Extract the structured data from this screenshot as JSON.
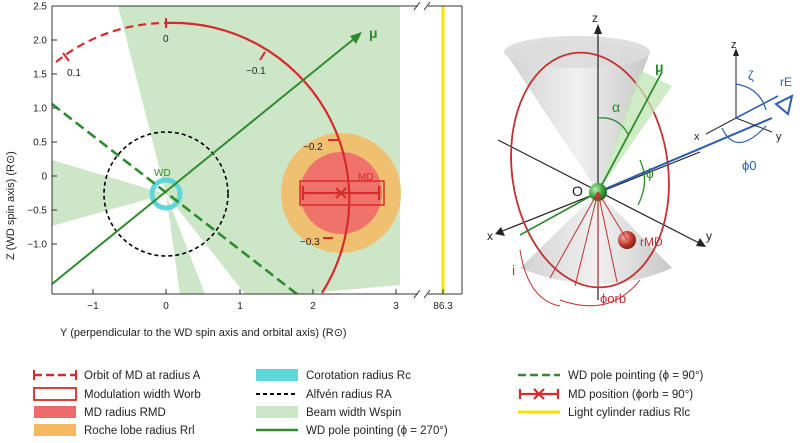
{
  "left_panel": {
    "x_axis_label": "Y (perpendicular to the WD spin axis and orbital axis) (R⊙)",
    "y_axis_label": "Z (WD spin axis) (R⊙)",
    "x_ticks": [
      "−1",
      "0",
      "1",
      "2",
      "3",
      "86.3"
    ],
    "y_ticks": [
      "2.5",
      "2.0",
      "1.5",
      "1.0",
      "0.5",
      "0",
      "−0.5",
      "−1.0"
    ],
    "phase_labels": [
      "0.1",
      "0",
      "−0.1",
      "−0.2",
      "−0.3"
    ],
    "mu_label": "μ",
    "wd_label": "WD",
    "md_label": "MD",
    "colors": {
      "orbit": "#d62b2b",
      "md_fill": "#ee6a6a",
      "roche": "#f5b860",
      "corotation": "#5fd6d8",
      "alfven": "#000000",
      "beam": "#cde6c8",
      "pole": "#2e8b2e",
      "light_cylinder": "#f5e400"
    }
  },
  "right_panel": {
    "axis_labels": {
      "z": "z",
      "x": "x",
      "y": "y"
    },
    "origin_label": "O",
    "mu_label": "μ",
    "alpha_label": "α",
    "phi_label": "ϕ",
    "i_label": "i",
    "phi_orb_label": "ϕorb",
    "r_md_label": "rMD",
    "inset": {
      "z": "z",
      "x": "x",
      "y": "y",
      "zeta": "ζ",
      "r_e": "rE",
      "phi0": "ϕ0"
    }
  },
  "legend": [
    {
      "key": "orbit",
      "text": "Orbit of MD at radius A",
      "icon": "dashed-red-line"
    },
    {
      "key": "modulation",
      "text": "Modulation width Worb",
      "icon": "red-outline-box"
    },
    {
      "key": "md_radius",
      "text": "MD radius RMD",
      "icon": "red-filled-box"
    },
    {
      "key": "roche",
      "text": "Roche lobe radius Rrl",
      "icon": "orange-box"
    },
    {
      "key": "corotation",
      "text": "Corotation radius Rc",
      "icon": "cyan-box"
    },
    {
      "key": "alfven",
      "text": "Alfvén radius RA",
      "icon": "black-dashed-line"
    },
    {
      "key": "beam",
      "text": "Beam width Wspin",
      "icon": "green-box"
    },
    {
      "key": "pole270",
      "text": "WD pole pointing (ϕ = 270°)",
      "icon": "green-solid-line"
    },
    {
      "key": "pole90",
      "text": "WD pole pointing (ϕ = 90°)",
      "icon": "green-dashed-line"
    },
    {
      "key": "md_position",
      "text": "MD position (ϕorb = 90°)",
      "icon": "red-error-marker"
    },
    {
      "key": "light_cylinder",
      "text": "Light cylinder radius Rlc",
      "icon": "yellow-line"
    }
  ]
}
